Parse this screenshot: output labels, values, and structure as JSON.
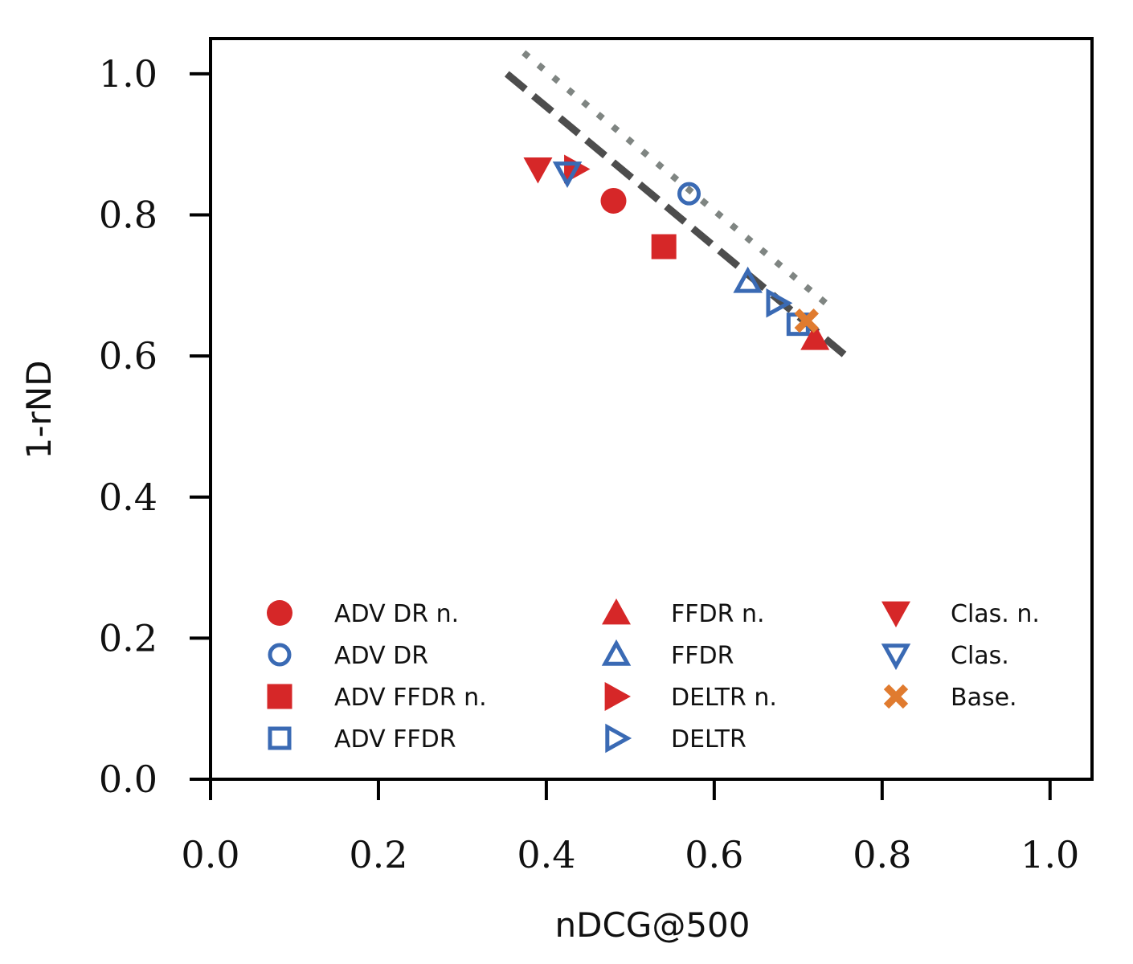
{
  "chart_data": {
    "type": "scatter",
    "xlabel": "nDCG@500",
    "ylabel": "1-rND",
    "xlim": [
      0.0,
      1.05
    ],
    "ylim": [
      0.0,
      1.05
    ],
    "xticks": [
      0.0,
      0.2,
      0.4,
      0.6,
      0.8,
      1.0
    ],
    "yticks": [
      0.0,
      0.2,
      0.4,
      0.6,
      0.8,
      1.0
    ],
    "xtick_labels": [
      "0.0",
      "0.2",
      "0.4",
      "0.6",
      "0.8",
      "1.0"
    ],
    "ytick_labels": [
      "0.0",
      "0.2",
      "0.4",
      "0.6",
      "0.8",
      "1.0"
    ],
    "grid": false,
    "legend_position": "lower-center",
    "legend_columns": 3,
    "colors": {
      "red": "#d62728",
      "blue": "#3a6ab4",
      "orange": "#e07b2f",
      "dark_line": "#4d4d4d",
      "dotted_line": "#7f8582"
    },
    "series": [
      {
        "name": "ADV DR n.",
        "marker": "circle",
        "filled": true,
        "color": "#d62728",
        "x": [
          0.48
        ],
        "y": [
          0.82
        ]
      },
      {
        "name": "ADV DR",
        "marker": "circle",
        "filled": false,
        "color": "#3a6ab4",
        "x": [
          0.57
        ],
        "y": [
          0.83
        ]
      },
      {
        "name": "ADV FFDR n.",
        "marker": "square",
        "filled": true,
        "color": "#d62728",
        "x": [
          0.54
        ],
        "y": [
          0.755
        ]
      },
      {
        "name": "ADV FFDR",
        "marker": "square",
        "filled": false,
        "color": "#3a6ab4",
        "x": [
          0.7
        ],
        "y": [
          0.645
        ]
      },
      {
        "name": "FFDR n.",
        "marker": "triangle-up",
        "filled": true,
        "color": "#d62728",
        "x": [
          0.72
        ],
        "y": [
          0.625
        ]
      },
      {
        "name": "FFDR",
        "marker": "triangle-up",
        "filled": false,
        "color": "#3a6ab4",
        "x": [
          0.64
        ],
        "y": [
          0.705
        ]
      },
      {
        "name": "DELTR n.",
        "marker": "triangle-right",
        "filled": true,
        "color": "#d62728",
        "x": [
          0.435
        ],
        "y": [
          0.865
        ]
      },
      {
        "name": "DELTR",
        "marker": "triangle-right",
        "filled": false,
        "color": "#3a6ab4",
        "x": [
          0.675
        ],
        "y": [
          0.675
        ]
      },
      {
        "name": "Clas. n.",
        "marker": "triangle-down",
        "filled": true,
        "color": "#d62728",
        "x": [
          0.39
        ],
        "y": [
          0.865
        ]
      },
      {
        "name": "Clas.",
        "marker": "triangle-down",
        "filled": false,
        "color": "#3a6ab4",
        "x": [
          0.425
        ],
        "y": [
          0.86
        ]
      },
      {
        "name": "Base.",
        "marker": "x",
        "filled": true,
        "color": "#e07b2f",
        "x": [
          0.71
        ],
        "y": [
          0.65
        ]
      }
    ],
    "reference_lines": [
      {
        "style": "dashed",
        "color": "#4d4d4d",
        "x": [
          0.353,
          0.757
        ],
        "y": [
          1.0,
          0.6
        ]
      },
      {
        "style": "dotted",
        "color": "#7f8582",
        "x": [
          0.373,
          0.743
        ],
        "y": [
          1.03,
          0.665
        ]
      }
    ]
  }
}
